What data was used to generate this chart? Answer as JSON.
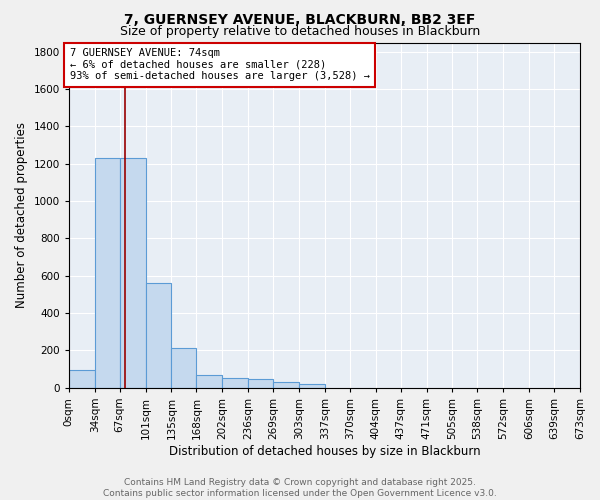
{
  "title1": "7, GUERNSEY AVENUE, BLACKBURN, BB2 3EF",
  "title2": "Size of property relative to detached houses in Blackburn",
  "xlabel": "Distribution of detached houses by size in Blackburn",
  "ylabel": "Number of detached properties",
  "bin_edges": [
    0,
    34,
    67,
    101,
    135,
    168,
    202,
    236,
    269,
    303,
    337,
    370,
    404,
    437,
    471,
    505,
    538,
    572,
    606,
    639,
    673
  ],
  "bin_labels": [
    "0sqm",
    "34sqm",
    "67sqm",
    "101sqm",
    "135sqm",
    "168sqm",
    "202sqm",
    "236sqm",
    "269sqm",
    "303sqm",
    "337sqm",
    "370sqm",
    "404sqm",
    "437sqm",
    "471sqm",
    "505sqm",
    "538sqm",
    "572sqm",
    "606sqm",
    "639sqm",
    "673sqm"
  ],
  "counts": [
    95,
    1230,
    1230,
    560,
    215,
    70,
    50,
    45,
    32,
    18,
    0,
    0,
    0,
    0,
    0,
    0,
    0,
    0,
    0,
    0
  ],
  "bar_color": "#c5d9ee",
  "bar_edge_color": "#5b9bd5",
  "red_line_x": 74,
  "annotation_line1": "7 GUERNSEY AVENUE: 74sqm",
  "annotation_line2": "← 6% of detached houses are smaller (228)",
  "annotation_line3": "93% of semi-detached houses are larger (3,528) →",
  "annotation_box_color": "#ffffff",
  "annotation_edge_color": "#cc0000",
  "ylim": [
    0,
    1850
  ],
  "yticks": [
    0,
    200,
    400,
    600,
    800,
    1000,
    1200,
    1400,
    1600,
    1800
  ],
  "bg_color": "#e8eef5",
  "grid_color": "#ffffff",
  "footer_line1": "Contains HM Land Registry data © Crown copyright and database right 2025.",
  "footer_line2": "Contains public sector information licensed under the Open Government Licence v3.0.",
  "title1_fontsize": 10,
  "title2_fontsize": 9,
  "xlabel_fontsize": 8.5,
  "ylabel_fontsize": 8.5,
  "tick_fontsize": 7.5,
  "annotation_fontsize": 7.5,
  "footer_fontsize": 6.5
}
